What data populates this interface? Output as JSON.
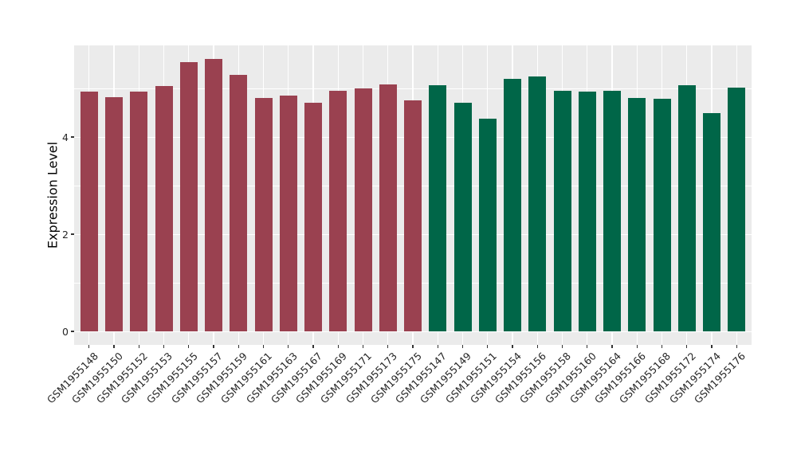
{
  "figure": {
    "background": "#FFFFFF",
    "panel_background": "#EBEBEB",
    "grid_color": "#FFFFFF",
    "tick_color": "#333333",
    "axis_text_color": "#262626"
  },
  "chart_data": {
    "type": "bar",
    "title": "",
    "xlabel": "",
    "ylabel": "Expression Level",
    "ylim": [
      -0.28,
      5.89
    ],
    "yticks_major": [
      0,
      2,
      4
    ],
    "yticks_minor": [
      1,
      3,
      5
    ],
    "grid": true,
    "legend": "none",
    "categories": [
      "GSM1955148",
      "GSM1955150",
      "GSM1955152",
      "GSM1955153",
      "GSM1955155",
      "GSM1955157",
      "GSM1955159",
      "GSM1955161",
      "GSM1955163",
      "GSM1955167",
      "GSM1955169",
      "GSM1955171",
      "GSM1955173",
      "GSM1955175",
      "GSM1955147",
      "GSM1955149",
      "GSM1955151",
      "GSM1955154",
      "GSM1955156",
      "GSM1955158",
      "GSM1955160",
      "GSM1955164",
      "GSM1955166",
      "GSM1955168",
      "GSM1955172",
      "GSM1955174",
      "GSM1955176"
    ],
    "values": [
      4.94,
      4.82,
      4.94,
      5.05,
      5.54,
      5.61,
      5.28,
      4.81,
      4.86,
      4.7,
      4.95,
      5.0,
      5.08,
      4.76,
      5.07,
      4.71,
      4.37,
      5.2,
      5.25,
      4.95,
      4.94,
      4.95,
      4.81,
      4.79,
      5.06,
      4.49,
      5.01
    ],
    "bar_groups": [
      "groupA",
      "groupA",
      "groupA",
      "groupA",
      "groupA",
      "groupA",
      "groupA",
      "groupA",
      "groupA",
      "groupA",
      "groupA",
      "groupA",
      "groupA",
      "groupA",
      "groupB",
      "groupB",
      "groupB",
      "groupB",
      "groupB",
      "groupB",
      "groupB",
      "groupB",
      "groupB",
      "groupB",
      "groupB",
      "groupB",
      "groupB"
    ],
    "group_colors": {
      "groupA": "#9A4150",
      "groupB": "#006648"
    }
  }
}
